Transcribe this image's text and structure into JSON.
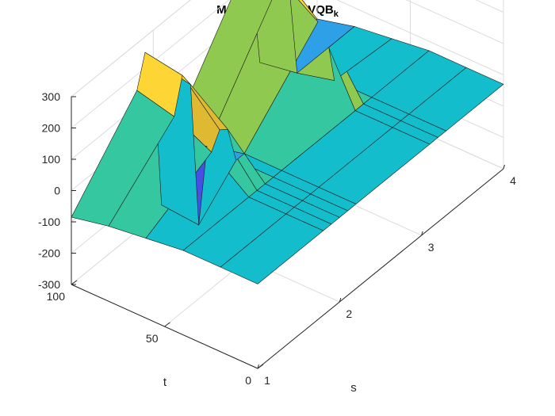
{
  "chart_data": {
    "type": "surface3d",
    "title": {
      "parts": [
        {
          "text": "MCMC",
          "sub": false
        },
        {
          "text": "n",
          "sub": true
        },
        {
          "text": "oPaulse VQB",
          "sub": false
        },
        {
          "text": "k",
          "sub": true
        }
      ]
    },
    "xlabel": "s",
    "ylabel": "t",
    "zlabel": "",
    "xlim": [
      1,
      4
    ],
    "ylim": [
      0,
      100
    ],
    "zlim": [
      -300,
      300
    ],
    "xticks": [
      1,
      2,
      3,
      4
    ],
    "yticks": [
      0,
      50,
      100
    ],
    "zticks": [
      -300,
      -200,
      -100,
      0,
      100,
      200,
      300
    ],
    "grid": true,
    "colormap": "parula",
    "surface": {
      "s": [
        1.0,
        1.8,
        1.9,
        2.0,
        2.1,
        2.2,
        3.1,
        3.2,
        3.3,
        4.0
      ],
      "t": [
        0,
        20,
        40,
        60,
        80,
        100
      ],
      "z": [
        [
          -30,
          -30,
          -30,
          -30,
          -30,
          -30,
          -30,
          -30,
          -30,
          -30
        ],
        [
          -30,
          -30,
          -30,
          -30,
          -30,
          -30,
          -30,
          -30,
          -30,
          -30
        ],
        [
          -30,
          -30,
          -30,
          -30,
          -30,
          -30,
          -30,
          -30,
          -30,
          -30
        ],
        [
          -45,
          60,
          110,
          90,
          -30,
          -30,
          200,
          150,
          -30,
          -45
        ],
        [
          -60,
          120,
          230,
          180,
          -290,
          -60,
          280,
          250,
          -60,
          -60
        ],
        [
          -85,
          150,
          250,
          205,
          -280,
          -95,
          255,
          220,
          -80,
          -90
        ]
      ]
    }
  }
}
